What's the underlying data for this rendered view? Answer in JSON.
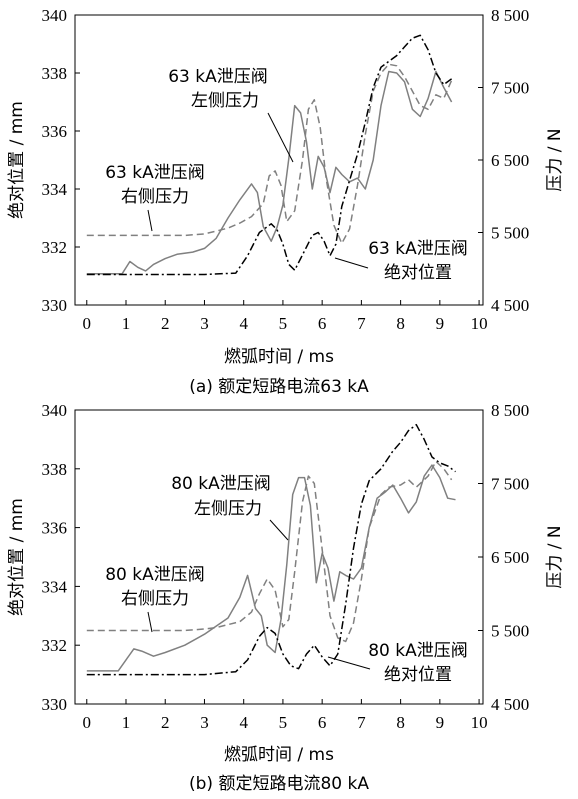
{
  "chart_data": [
    {
      "type": "line",
      "caption": "(a)  额定短路电流63 kA",
      "xlabel": "燃弧时间 / ms",
      "ylabel_left": "绝对位置 / mm",
      "ylabel_right": "压力 / N",
      "xlim": [
        -0.3,
        10.1
      ],
      "ylim_left": [
        330,
        340
      ],
      "ylim_right": [
        4500,
        8500
      ],
      "xticks": [
        "0",
        "1",
        "2",
        "3",
        "4",
        "5",
        "6",
        "7",
        "8",
        "9",
        "10"
      ],
      "yticks_left": [
        "330",
        "332",
        "334",
        "336",
        "338",
        "340"
      ],
      "yticks_right": [
        "4 500",
        "5 500",
        "6 500",
        "7 500",
        "8 500"
      ],
      "annotations": [
        {
          "lines": [
            "63 kA泄压阀",
            "左侧压力"
          ]
        },
        {
          "lines": [
            "63 kA泄压阀",
            "右侧压力"
          ]
        },
        {
          "lines": [
            "63 kA泄压阀",
            "绝对位置"
          ]
        }
      ],
      "series": [
        {
          "axis": "right",
          "style": "solid",
          "color": "#808080",
          "x": [
            0,
            0.9,
            1.1,
            1.3,
            1.5,
            1.7,
            2.0,
            2.3,
            2.7,
            3.0,
            3.3,
            3.6,
            3.9,
            4.2,
            4.35,
            4.5,
            4.7,
            4.85,
            5.0,
            5.15,
            5.3,
            5.45,
            5.6,
            5.75,
            5.9,
            6.05,
            6.2,
            6.35,
            6.5,
            6.7,
            6.9,
            7.1,
            7.3,
            7.5,
            7.7,
            7.9,
            8.1,
            8.3,
            8.5,
            8.7,
            8.9,
            9.1,
            9.3
          ],
          "y": [
            4930,
            4930,
            5100,
            5020,
            4970,
            5060,
            5140,
            5200,
            5230,
            5280,
            5420,
            5700,
            5950,
            6170,
            6050,
            5580,
            5380,
            5570,
            5880,
            6520,
            7250,
            7150,
            6750,
            6100,
            6550,
            6400,
            6050,
            6400,
            6300,
            6200,
            6250,
            6100,
            6500,
            7250,
            7720,
            7700,
            7580,
            7200,
            7100,
            7350,
            7720,
            7500,
            7300
          ]
        },
        {
          "axis": "right",
          "style": "dashed",
          "color": "#808080",
          "x": [
            0,
            0.5,
            1.0,
            1.5,
            2.0,
            2.5,
            3.0,
            3.3,
            3.6,
            3.9,
            4.2,
            4.5,
            4.65,
            4.8,
            4.95,
            5.1,
            5.3,
            5.5,
            5.65,
            5.8,
            5.95,
            6.1,
            6.3,
            6.5,
            6.7,
            6.9,
            7.1,
            7.3,
            7.5,
            7.7,
            7.9,
            8.1,
            8.3,
            8.5,
            8.7,
            8.9,
            9.1,
            9.3
          ],
          "y": [
            5460,
            5460,
            5460,
            5460,
            5460,
            5460,
            5480,
            5520,
            5560,
            5630,
            5720,
            5900,
            6280,
            6350,
            6150,
            5650,
            5800,
            6500,
            7200,
            7330,
            6950,
            6250,
            5600,
            5350,
            5550,
            6150,
            6850,
            7450,
            7700,
            7820,
            7800,
            7650,
            7450,
            7250,
            7200,
            7400,
            7350,
            7600
          ]
        },
        {
          "axis": "left",
          "style": "dashdot",
          "color": "#000000",
          "x": [
            0,
            1.0,
            2.0,
            3.0,
            3.8,
            4.1,
            4.4,
            4.7,
            4.85,
            5.0,
            5.15,
            5.3,
            5.45,
            5.6,
            5.75,
            5.9,
            6.05,
            6.2,
            6.35,
            6.5,
            6.7,
            6.9,
            7.1,
            7.3,
            7.5,
            7.7,
            7.9,
            8.1,
            8.3,
            8.5,
            8.7,
            8.9,
            9.1,
            9.3
          ],
          "y": [
            331.05,
            331.05,
            331.05,
            331.05,
            331.1,
            331.7,
            332.5,
            332.8,
            332.6,
            332.1,
            331.4,
            331.2,
            331.6,
            332.0,
            332.4,
            332.5,
            332.2,
            331.7,
            332.1,
            333.4,
            334.3,
            335.2,
            336.3,
            337.5,
            338.2,
            338.4,
            338.6,
            338.9,
            339.2,
            339.3,
            338.8,
            338.0,
            337.6,
            337.8
          ]
        }
      ]
    },
    {
      "type": "line",
      "caption": "(b)  额定短路电流80 kA",
      "xlabel": "燃弧时间 / ms",
      "ylabel_left": "绝对位置 / mm",
      "ylabel_right": "压力 / N",
      "xlim": [
        -0.3,
        10.1
      ],
      "ylim_left": [
        330,
        340
      ],
      "ylim_right": [
        4500,
        8500
      ],
      "xticks": [
        "0",
        "1",
        "2",
        "3",
        "4",
        "5",
        "6",
        "7",
        "8",
        "9",
        "10"
      ],
      "yticks_left": [
        "330",
        "332",
        "334",
        "336",
        "338",
        "340"
      ],
      "yticks_right": [
        "4 500",
        "5 500",
        "6 500",
        "7 500",
        "8 500"
      ],
      "annotations": [
        {
          "lines": [
            "80 kA泄压阀",
            "左侧压力"
          ]
        },
        {
          "lines": [
            "80 kA泄压阀",
            "右侧压力"
          ]
        },
        {
          "lines": [
            "80 kA泄压阀",
            "绝对位置"
          ]
        }
      ],
      "series": [
        {
          "axis": "right",
          "style": "solid",
          "color": "#808080",
          "x": [
            0,
            0.8,
            1.0,
            1.2,
            1.4,
            1.7,
            2.0,
            2.5,
            3.0,
            3.3,
            3.6,
            3.9,
            4.1,
            4.3,
            4.45,
            4.6,
            4.8,
            4.95,
            5.1,
            5.25,
            5.4,
            5.55,
            5.7,
            5.85,
            6.0,
            6.15,
            6.3,
            6.45,
            6.6,
            6.8,
            7.0,
            7.2,
            7.4,
            7.6,
            7.8,
            8.0,
            8.2,
            8.4,
            8.6,
            8.8,
            9.0,
            9.2,
            9.4
          ],
          "y": [
            4950,
            4950,
            5100,
            5250,
            5220,
            5150,
            5200,
            5300,
            5450,
            5560,
            5670,
            5950,
            6250,
            5800,
            5700,
            5300,
            5200,
            5650,
            6400,
            7350,
            7580,
            7580,
            7200,
            6150,
            6550,
            6350,
            5900,
            6300,
            6250,
            6200,
            6350,
            6900,
            7300,
            7380,
            7480,
            7300,
            7100,
            7250,
            7600,
            7750,
            7580,
            7300,
            7280
          ]
        },
        {
          "axis": "right",
          "style": "dashed",
          "color": "#808080",
          "x": [
            0,
            0.5,
            1.0,
            1.5,
            2.0,
            2.5,
            3.0,
            3.3,
            3.6,
            3.9,
            4.2,
            4.4,
            4.6,
            4.8,
            5.0,
            5.15,
            5.3,
            5.5,
            5.65,
            5.8,
            6.0,
            6.2,
            6.4,
            6.6,
            6.8,
            7.0,
            7.2,
            7.5,
            7.7,
            8.0,
            8.2,
            8.4,
            8.7,
            8.9,
            9.1,
            9.3
          ],
          "y": [
            5500,
            5500,
            5500,
            5500,
            5500,
            5500,
            5520,
            5540,
            5580,
            5620,
            5750,
            6000,
            6200,
            6050,
            5550,
            5650,
            6300,
            7250,
            7600,
            7500,
            6600,
            5700,
            5400,
            5350,
            5600,
            6200,
            6900,
            7350,
            7450,
            7480,
            7550,
            7450,
            7600,
            7800,
            7700,
            7550
          ]
        },
        {
          "axis": "left",
          "style": "dashdot",
          "color": "#000000",
          "x": [
            0,
            1.0,
            2.0,
            3.0,
            3.8,
            4.1,
            4.4,
            4.6,
            4.8,
            5.0,
            5.2,
            5.4,
            5.6,
            5.8,
            6.0,
            6.2,
            6.4,
            6.6,
            6.8,
            7.0,
            7.2,
            7.5,
            7.8,
            8.0,
            8.2,
            8.4,
            8.6,
            8.8,
            9.0,
            9.2,
            9.4
          ],
          "y": [
            331.0,
            331.0,
            331.0,
            331.0,
            331.1,
            331.5,
            332.3,
            332.6,
            332.4,
            331.7,
            331.3,
            331.2,
            331.7,
            332.0,
            331.6,
            331.3,
            331.7,
            333.4,
            335.3,
            336.8,
            337.6,
            338.0,
            338.6,
            338.9,
            339.3,
            339.5,
            339.0,
            338.4,
            338.2,
            338.1,
            337.9
          ]
        }
      ]
    }
  ]
}
